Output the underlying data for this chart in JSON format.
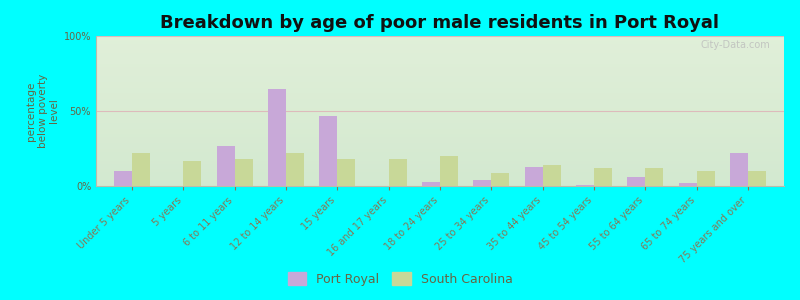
{
  "title": "Breakdown by age of poor male residents in Port Royal",
  "ylabel": "percentage\nbelow poverty\nlevel",
  "categories": [
    "Under 5 years",
    "5 years",
    "6 to 11 years",
    "12 to 14 years",
    "15 years",
    "16 and 17 years",
    "18 to 24 years",
    "25 to 34 years",
    "35 to 44 years",
    "45 to 54 years",
    "55 to 64 years",
    "65 to 74 years",
    "75 years and over"
  ],
  "port_royal": [
    10,
    0,
    27,
    65,
    47,
    0,
    3,
    4,
    13,
    1,
    6,
    2,
    22
  ],
  "south_carolina": [
    22,
    17,
    18,
    22,
    18,
    18,
    20,
    9,
    14,
    12,
    12,
    10,
    10
  ],
  "port_royal_color": "#c8a8d8",
  "south_carolina_color": "#c8d898",
  "background_color": "#00ffff",
  "ylim": [
    0,
    100
  ],
  "yticks": [
    0,
    50,
    100
  ],
  "ytick_labels": [
    "0%",
    "50%",
    "100%"
  ],
  "title_fontsize": 13,
  "ylabel_fontsize": 7.5,
  "tick_fontsize": 7,
  "legend_fontsize": 9,
  "bar_width": 0.35
}
